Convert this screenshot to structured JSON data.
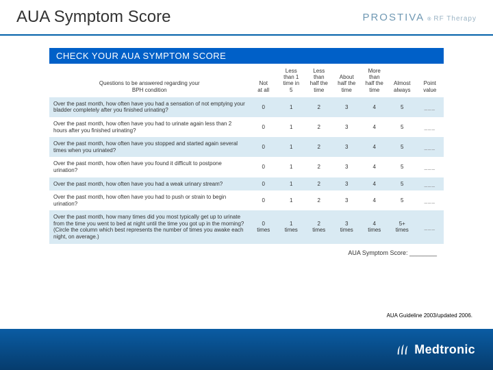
{
  "header": {
    "title": "AUA Symptom Score",
    "productName": "PROSTIVA",
    "reg": "®",
    "subtitle": "RF Therapy"
  },
  "banner": "CHECK YOUR AUA SYMPTOM SCORE",
  "table": {
    "questionHeader": "Questions to be answered regarding your\nBPH condition",
    "cols": [
      "Not\nat all",
      "Less\nthan 1\ntime in\n5",
      "Less\nthan\nhalf the\ntime",
      "About\nhalf the\ntime",
      "More\nthan\nhalf the\ntime",
      "Almost\nalways",
      "Point\nvalue"
    ],
    "rows": [
      {
        "q": "Over the past month, how often have you had a sensation of not emptying your bladder completely after you finished urinating?",
        "v": [
          "0",
          "1",
          "2",
          "3",
          "4",
          "5",
          "___"
        ]
      },
      {
        "q": "Over the past month, how often have you had to urinate again less than 2 hours after you finished urinating?",
        "v": [
          "0",
          "1",
          "2",
          "3",
          "4",
          "5",
          "___"
        ]
      },
      {
        "q": "Over the past month, how often have you stopped and started again several times when you urinated?",
        "v": [
          "0",
          "1",
          "2",
          "3",
          "4",
          "5",
          "___"
        ]
      },
      {
        "q": "Over the past month, how often have you found it difficult to postpone urination?",
        "v": [
          "0",
          "1",
          "2",
          "3",
          "4",
          "5",
          "___"
        ]
      },
      {
        "q": "Over the past month, how often have you had a weak urinary stream?",
        "v": [
          "0",
          "1",
          "2",
          "3",
          "4",
          "5",
          "___"
        ]
      },
      {
        "q": "Over the past month, how often have you had to push or strain to begin urination?",
        "v": [
          "0",
          "1",
          "2",
          "3",
          "4",
          "5",
          "___"
        ]
      },
      {
        "q": "Over the past month, how many times did you most typically get up to urinate from the time you went to bed at night until the time you got up in the morning?\n(Circle the column which best represents the number of times you awake each night, on average.)",
        "v": [
          "0\ntimes",
          "1\ntimes",
          "2\ntimes",
          "3\ntimes",
          "4\ntimes",
          "5+\ntimes",
          "___"
        ]
      }
    ],
    "scoreLabel": "AUA Symptom Score: ________"
  },
  "citation": "AUA Guideline 2003/updated 2006.",
  "footer": {
    "company": "Medtronic"
  },
  "colors": {
    "bannerBg": "#0060c8",
    "altRow": "#d9eaf3",
    "headerRule": "#0060a9",
    "footerTop": "#0a5ca3",
    "footerBottom": "#063c6d"
  }
}
